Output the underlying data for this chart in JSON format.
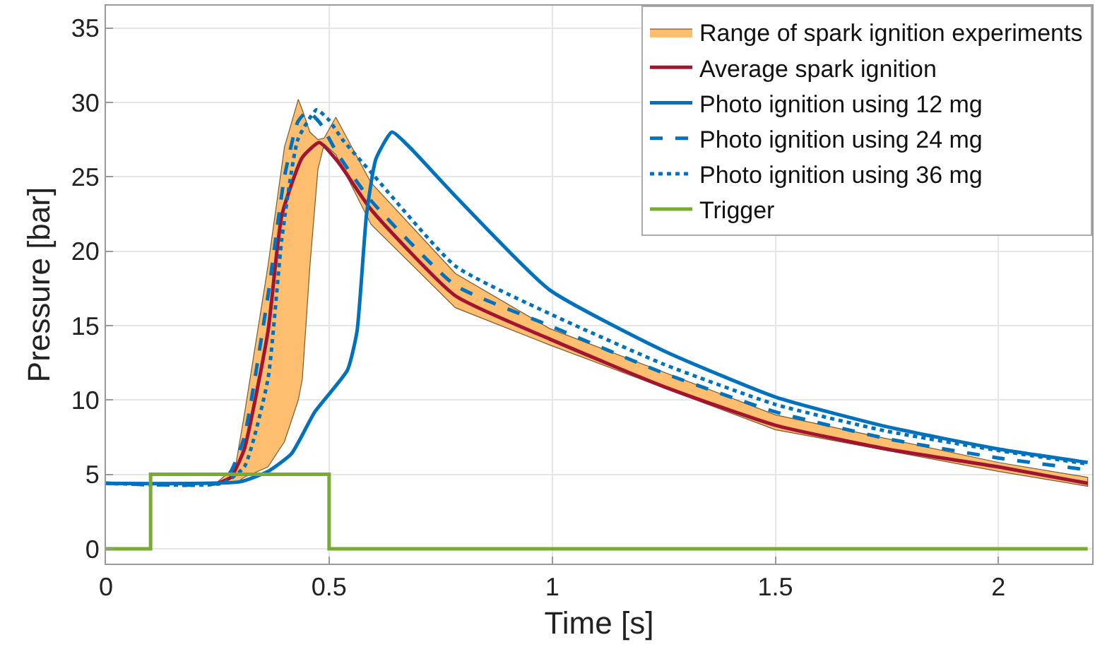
{
  "chart_data": {
    "type": "line",
    "xlabel": "Time [s]",
    "ylabel": "Pressure [bar]",
    "xlim": [
      0,
      2.21
    ],
    "ylim": [
      -1,
      36.5
    ],
    "xticks": [
      0,
      0.5,
      1,
      1.5,
      2
    ],
    "yticks": [
      0,
      5,
      10,
      15,
      20,
      25,
      30,
      35
    ],
    "grid": true,
    "legend": "top right",
    "marker": "none",
    "series": [
      {
        "name": "Range of spark ignition experiments",
        "type": "area",
        "color": "#fdbf6f",
        "values": [
          null,
          null,
          null,
          null,
          null,
          null,
          null,
          null,
          null,
          null,
          null,
          null,
          null,
          null,
          null,
          null,
          null,
          null
        ],
        "x": [
          0,
          0.25,
          0.29,
          0.31,
          0.363,
          0.4,
          0.431,
          0.44,
          0.457,
          0.475,
          0.489,
          0.515,
          0.594,
          0.783,
          0.994,
          1.5,
          2,
          2.2
        ],
        "upper": [
          4.4,
          4.5,
          5.5,
          9,
          19,
          27,
          30.2,
          29.5,
          28,
          27.5,
          27.6,
          29,
          24.6,
          18.5,
          14.8,
          9,
          5.8,
          4.8
        ],
        "lower": [
          4.4,
          4.4,
          4.4,
          4.8,
          5.5,
          7.2,
          10,
          11.4,
          19,
          25.5,
          27.2,
          26.5,
          21.8,
          16.2,
          13.7,
          8,
          5.2,
          4.2
        ]
      },
      {
        "name": "Average spark ignition",
        "color": "#a2142f",
        "line_style": "solid",
        "x": [
          0.25,
          0.28,
          0.31,
          0.363,
          0.394,
          0.44,
          0.478,
          0.52,
          0.594,
          0.783,
          0.994,
          1.25,
          1.5,
          1.75,
          2,
          2.2
        ],
        "values": [
          4.4,
          4.8,
          6.7,
          14.6,
          22.4,
          26.3,
          27.3,
          26,
          22.8,
          17,
          14.1,
          10.9,
          8.3,
          6.7,
          5.5,
          4.4
        ]
      },
      {
        "name": "Photo ignition using 12 mg",
        "color": "#0072bd",
        "line_style": "solid",
        "x": [
          0,
          0.3,
          0.363,
          0.416,
          0.468,
          0.541,
          0.5625,
          0.584,
          0.605,
          0.641,
          0.68,
          0.783,
          0.994,
          1.25,
          1.5,
          1.75,
          2,
          2.2
        ],
        "values": [
          4.4,
          4.5,
          5.2,
          6.4,
          9.2,
          12,
          14.6,
          22.5,
          26.2,
          28,
          27,
          23.7,
          17.4,
          13.3,
          10.2,
          8.2,
          6.7,
          5.8
        ]
      },
      {
        "name": "Photo ignition using 24 mg",
        "color": "#0072bd",
        "line_style": "dashed",
        "x": [
          0,
          0.25,
          0.28,
          0.31,
          0.363,
          0.4,
          0.43,
          0.452,
          0.48,
          0.52,
          0.594,
          0.783,
          0.994,
          1.25,
          1.5,
          1.75,
          2,
          2.2
        ],
        "values": [
          4.4,
          4.4,
          5.2,
          7.5,
          17,
          25,
          28.7,
          29.4,
          28.6,
          26.5,
          23.4,
          17.7,
          15,
          11.8,
          9.2,
          7.4,
          6.1,
          5.3
        ]
      },
      {
        "name": "Photo ignition using 36 mg",
        "color": "#0072bd",
        "line_style": "dotted",
        "x": [
          0,
          0.26,
          0.31,
          0.363,
          0.394,
          0.43,
          0.472,
          0.5,
          0.53,
          0.594,
          0.783,
          0.994,
          1.25,
          1.5,
          1.75,
          2,
          2.2
        ],
        "values": [
          4.4,
          4.4,
          5.5,
          11.4,
          20.8,
          27.5,
          29.5,
          28.8,
          27.5,
          25.3,
          19,
          15.8,
          12.4,
          9.7,
          7.9,
          6.6,
          5.7
        ]
      },
      {
        "name": "Trigger",
        "type": "step",
        "color": "#77ac30",
        "line_style": "solid",
        "x": [
          0,
          0.1,
          0.5,
          2.2
        ],
        "values": [
          0,
          5,
          0,
          0
        ]
      }
    ]
  }
}
